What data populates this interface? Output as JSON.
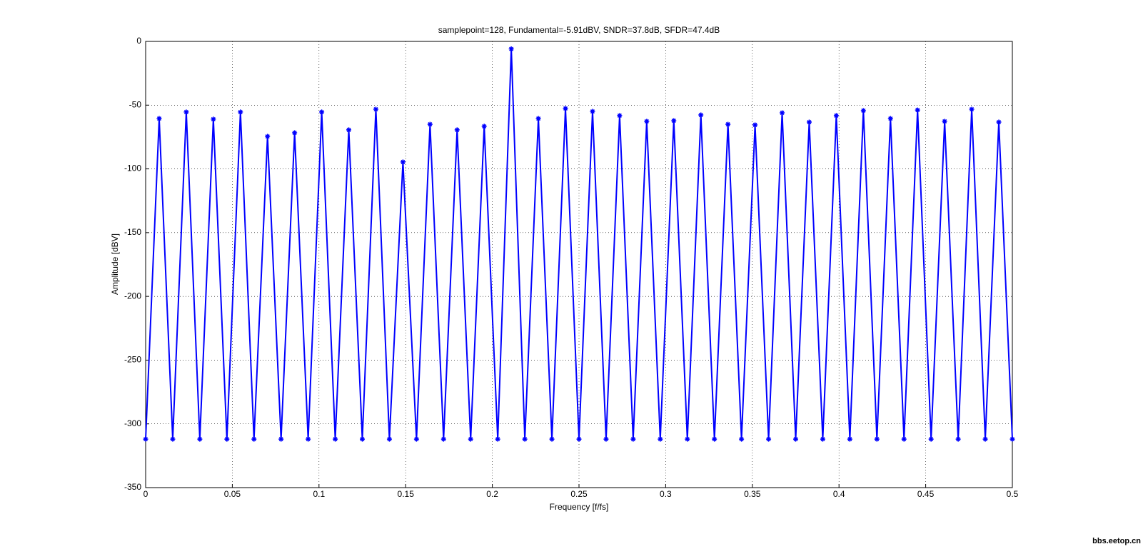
{
  "chart_data": {
    "type": "line",
    "title": "samplepoint=128, Fundamental=-5.91dBV, SNDR=37.8dB, SFDR=47.4dB",
    "x_label": "Frequency [f/fs]",
    "y_label": "Amplitude [dBV]",
    "watermark": "bbs.eetop.cn",
    "grid": true,
    "xlim": [
      0,
      0.5
    ],
    "xticks": [
      0,
      0.05,
      0.1,
      0.15,
      0.2,
      0.25,
      0.3,
      0.35,
      0.4,
      0.45,
      0.5
    ],
    "ylim": [
      -350,
      0
    ],
    "yticks": [
      -350,
      -300,
      -250,
      -200,
      -150,
      -100,
      -50,
      0
    ],
    "x": [
      0,
      0.0078125,
      0.015625,
      0.0234375,
      0.03125,
      0.0390625,
      0.046875,
      0.0546875,
      0.0625,
      0.0703125,
      0.078125,
      0.0859375,
      0.09375,
      0.1015625,
      0.109375,
      0.1171875,
      0.125,
      0.1328125,
      0.140625,
      0.1484375,
      0.15625,
      0.1640625,
      0.171875,
      0.1796875,
      0.1875,
      0.1953125,
      0.203125,
      0.2109375,
      0.21875,
      0.2265625,
      0.234375,
      0.2421875,
      0.25,
      0.2578125,
      0.265625,
      0.2734375,
      0.28125,
      0.2890625,
      0.296875,
      0.3046875,
      0.3125,
      0.3203125,
      0.328125,
      0.3359375,
      0.34375,
      0.3515625,
      0.359375,
      0.3671875,
      0.375,
      0.3828125,
      0.390625,
      0.3984375,
      0.40625,
      0.4140625,
      0.421875,
      0.4296875,
      0.4375,
      0.4453125,
      0.453125,
      0.4609375,
      0.46875,
      0.4765625,
      0.484375,
      0.4921875,
      0.5
    ],
    "series": [
      {
        "color": "#0000ff",
        "values": [
          -312,
          -60.5,
          -312,
          -55.4,
          -312,
          -61,
          -312,
          -55.4,
          -312,
          -74.5,
          -312,
          -71.7,
          -312,
          -55.4,
          -312,
          -69.4,
          -312,
          -53.2,
          -312,
          -94.6,
          -312,
          -65,
          -312,
          -69.4,
          -312,
          -66.6,
          -312,
          -5.91,
          -312,
          -60.5,
          -312,
          -52.6,
          -312,
          -54.9,
          -312,
          -58.2,
          -312,
          -62.7,
          -312,
          -62.2,
          -312,
          -57.7,
          -312,
          -65,
          -312,
          -65.5,
          -312,
          -56,
          -312,
          -63.3,
          -312,
          -58.2,
          -312,
          -54.3,
          -312,
          -60.5,
          -312,
          -53.8,
          -312,
          -62.7,
          -312,
          -53.2,
          -312,
          -63.3,
          -312
        ]
      }
    ]
  }
}
